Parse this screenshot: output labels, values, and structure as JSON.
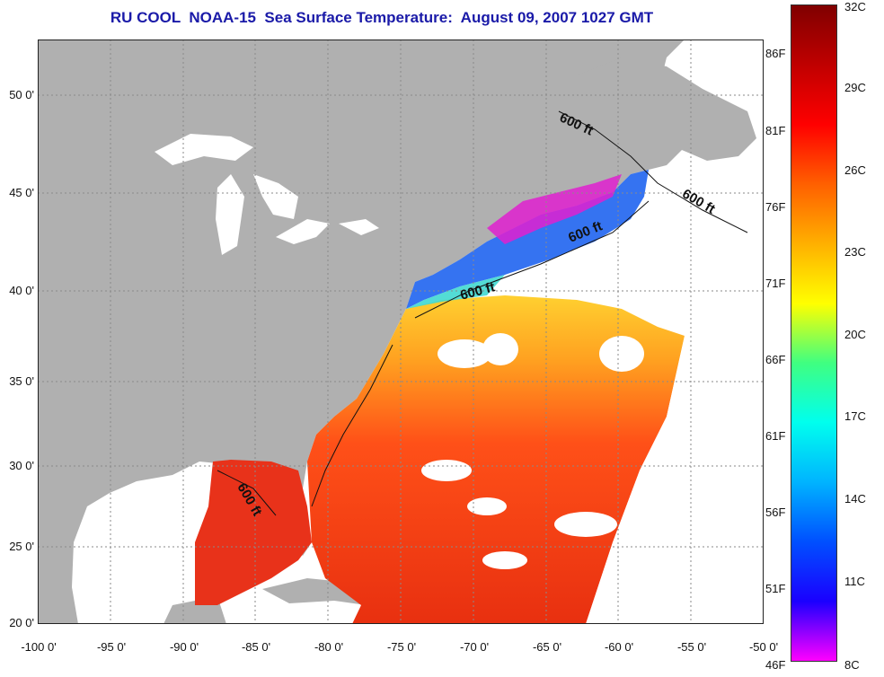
{
  "title": "RU COOL  NOAA-15  Sea Surface Temperature:  August 09, 2007 1027 GMT",
  "map": {
    "lat_ticks": [
      "50 0'",
      "45 0'",
      "40 0'",
      "35 0'",
      "30 0'",
      "25 0'",
      "20 0'"
    ],
    "lon_ticks": [
      "-100 0'",
      "-95 0'",
      "-90 0'",
      "-85 0'",
      "-80 0'",
      "-75 0'",
      "-70 0'",
      "-65 0'",
      "-60 0'",
      "-55 0'",
      "-50 0'"
    ],
    "isobath_labels": [
      "600 ft",
      "600 ft",
      "600 ft",
      "600 ft",
      "600 ft"
    ],
    "colors": {
      "land": "#b0b0b0",
      "no_data": "#ffffff",
      "grid": "#9a9a9a",
      "warm": "#e82a14",
      "cool": "#2a6cf0"
    }
  },
  "colorbar": {
    "celsius_labels": [
      "32C",
      "29C",
      "26C",
      "23C",
      "20C",
      "17C",
      "14C",
      "11C",
      "8C"
    ],
    "fahrenheit_labels": [
      "86F",
      "81F",
      "76F",
      "71F",
      "66F",
      "61F",
      "56F",
      "51F",
      "46F"
    ],
    "gradient": [
      "#ff00ff",
      "#1a00ff",
      "#0050ff",
      "#00b4ff",
      "#00ffee",
      "#40ff80",
      "#ffff00",
      "#ffb000",
      "#ff6000",
      "#ff0000",
      "#c00000",
      "#800000"
    ]
  }
}
